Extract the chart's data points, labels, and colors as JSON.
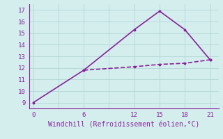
{
  "x_solid": [
    0,
    6,
    12,
    15,
    18,
    21
  ],
  "y_solid": [
    9,
    11.8,
    15.3,
    16.9,
    15.3,
    12.7
  ],
  "x_dashed": [
    6,
    12,
    15,
    18,
    21
  ],
  "y_dashed": [
    11.8,
    12.1,
    12.3,
    12.4,
    12.7
  ],
  "line_color": "#882299",
  "xlabel": "Windchill (Refroidissement éolien,°C)",
  "xlabel_color": "#882299",
  "background_color": "#d4eeee",
  "grid_color": "#b8d8d8",
  "tick_color": "#882299",
  "spine_color": "#882299",
  "xlim": [
    -0.5,
    22
  ],
  "ylim": [
    8.5,
    17.5
  ],
  "xticks": [
    0,
    3,
    6,
    9,
    12,
    15,
    18,
    21
  ],
  "xtick_labels": [
    "0",
    "",
    "6",
    "",
    "12",
    "15",
    "18",
    "21"
  ],
  "yticks": [
    9,
    10,
    11,
    12,
    13,
    14,
    15,
    16,
    17
  ],
  "marker_size": 3.5,
  "linewidth": 1.2
}
